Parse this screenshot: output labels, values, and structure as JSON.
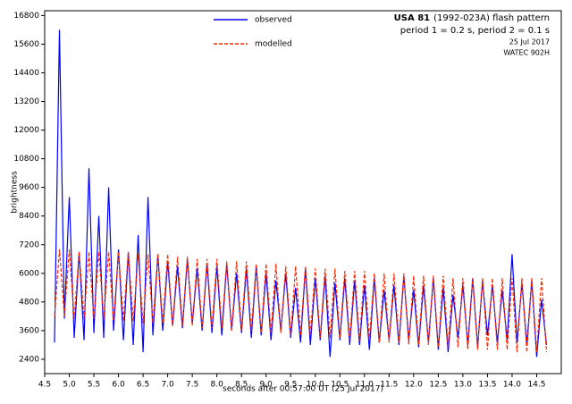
{
  "chart_data": {
    "type": "line",
    "title": [
      "USA 81",
      "(1992-023A) flash pattern"
    ],
    "annotations": [
      "period 1 = 0.2  s, period 2 = 0.1 s",
      "25 Jul 2017",
      "WATEC 902H"
    ],
    "xlabel": "seconds after 00:57:00 UT (25 Jul 2017)",
    "ylabel": "brightness",
    "legend": "upper center",
    "xlim": [
      4.5,
      15.0
    ],
    "ylim": [
      1800,
      17000
    ],
    "xticks": [
      4.5,
      {
        "value": 5,
        "label": "5.0"
      },
      5.5,
      {
        "value": 6,
        "label": "6.0"
      },
      6.5,
      {
        "value": 7,
        "label": "7.0"
      },
      7.5,
      {
        "value": 8,
        "label": "8.0"
      },
      8.5,
      {
        "value": 9,
        "label": "9.0"
      },
      9.5,
      {
        "value": 10,
        "label": "10.0"
      },
      10.5,
      {
        "value": 11,
        "label": "11.0"
      },
      11.5,
      {
        "value": 12,
        "label": "12.0"
      },
      12.5,
      {
        "value": 13,
        "label": "13.0"
      },
      13.5,
      {
        "value": 14,
        "label": "14.0"
      },
      14.5
    ],
    "yticks": [
      2400,
      3600,
      4800,
      6000,
      7200,
      8400,
      9600,
      10800,
      12000,
      13200,
      14400,
      15600,
      16800
    ],
    "x": [
      4.7,
      4.8,
      4.9,
      5.0,
      5.1,
      5.2,
      5.3,
      5.4,
      5.5,
      5.6,
      5.7,
      5.8,
      5.9,
      6.0,
      6.1,
      6.2,
      6.3,
      6.4,
      6.5,
      6.6,
      6.7,
      6.8,
      6.9,
      7.0,
      7.1,
      7.2,
      7.3,
      7.4,
      7.5,
      7.6,
      7.7,
      7.8,
      7.9,
      8.0,
      8.1,
      8.2,
      8.3,
      8.4,
      8.5,
      8.6,
      8.7,
      8.8,
      8.9,
      9.0,
      9.1,
      9.2,
      9.3,
      9.4,
      9.5,
      9.6,
      9.7,
      9.8,
      9.9,
      10.0,
      10.1,
      10.2,
      10.3,
      10.4,
      10.5,
      10.6,
      10.7,
      10.8,
      10.9,
      11.0,
      11.1,
      11.2,
      11.3,
      11.4,
      11.5,
      11.6,
      11.7,
      11.8,
      11.9,
      12.0,
      12.1,
      12.2,
      12.3,
      12.4,
      12.5,
      12.6,
      12.7,
      12.8,
      12.9,
      13.0,
      13.1,
      13.2,
      13.3,
      13.4,
      13.5,
      13.6,
      13.7,
      13.8,
      13.9,
      14.0,
      14.1,
      14.2,
      14.3,
      14.4,
      14.5,
      14.6,
      14.7
    ],
    "series": [
      {
        "name": "observed",
        "color": "#0000ff",
        "dashed": false,
        "values": [
          3100,
          16200,
          4100,
          9200,
          3300,
          6900,
          3200,
          10400,
          3500,
          8400,
          3300,
          9600,
          3600,
          7000,
          3200,
          6900,
          3000,
          7600,
          2700,
          9200,
          3400,
          6800,
          3600,
          6500,
          3800,
          6300,
          3700,
          6600,
          3900,
          6200,
          3600,
          6400,
          3500,
          6300,
          3400,
          6400,
          3600,
          6000,
          3500,
          6200,
          3300,
          6300,
          3400,
          6000,
          3200,
          5700,
          3600,
          6000,
          3300,
          5400,
          3100,
          6200,
          3000,
          5800,
          3200,
          5900,
          2500,
          5600,
          3200,
          5800,
          3000,
          5700,
          3000,
          5500,
          2800,
          5800,
          3100,
          5300,
          3200,
          5500,
          3000,
          5900,
          3200,
          5300,
          2900,
          5500,
          3100,
          5800,
          2800,
          5400,
          2700,
          5100,
          3300,
          5500,
          3000,
          5800,
          2900,
          5700,
          3400,
          5500,
          3100,
          5300,
          3200,
          6800,
          3100,
          5600,
          3000,
          5700,
          2500,
          4900,
          3000
        ]
      },
      {
        "name": "modelled",
        "color": "#ff2a00",
        "dashed": true,
        "values": [
          4200,
          7000,
          4200,
          7000,
          4100,
          6900,
          4100,
          6900,
          4100,
          6900,
          4100,
          6900,
          4000,
          6900,
          4000,
          6900,
          4000,
          6800,
          3900,
          6800,
          3900,
          6800,
          3900,
          6800,
          3800,
          6700,
          3800,
          6700,
          3800,
          6600,
          3700,
          6600,
          3700,
          6600,
          3700,
          6500,
          3600,
          6500,
          3600,
          6500,
          3600,
          6400,
          3500,
          6400,
          3500,
          6400,
          3500,
          6300,
          3400,
          6300,
          3400,
          6300,
          3400,
          6200,
          3300,
          6200,
          3300,
          6200,
          3300,
          6100,
          3200,
          6100,
          3200,
          6100,
          3200,
          6000,
          3100,
          6000,
          3100,
          6000,
          3100,
          6000,
          3000,
          5900,
          3000,
          5900,
          3000,
          5900,
          2900,
          5900,
          2900,
          5800,
          2900,
          5800,
          2800,
          5800,
          2800,
          5800,
          2800,
          5800,
          2800,
          5800,
          2800,
          5800,
          2700,
          5800,
          2700,
          5800,
          2700,
          5800,
          2700
        ]
      }
    ]
  }
}
